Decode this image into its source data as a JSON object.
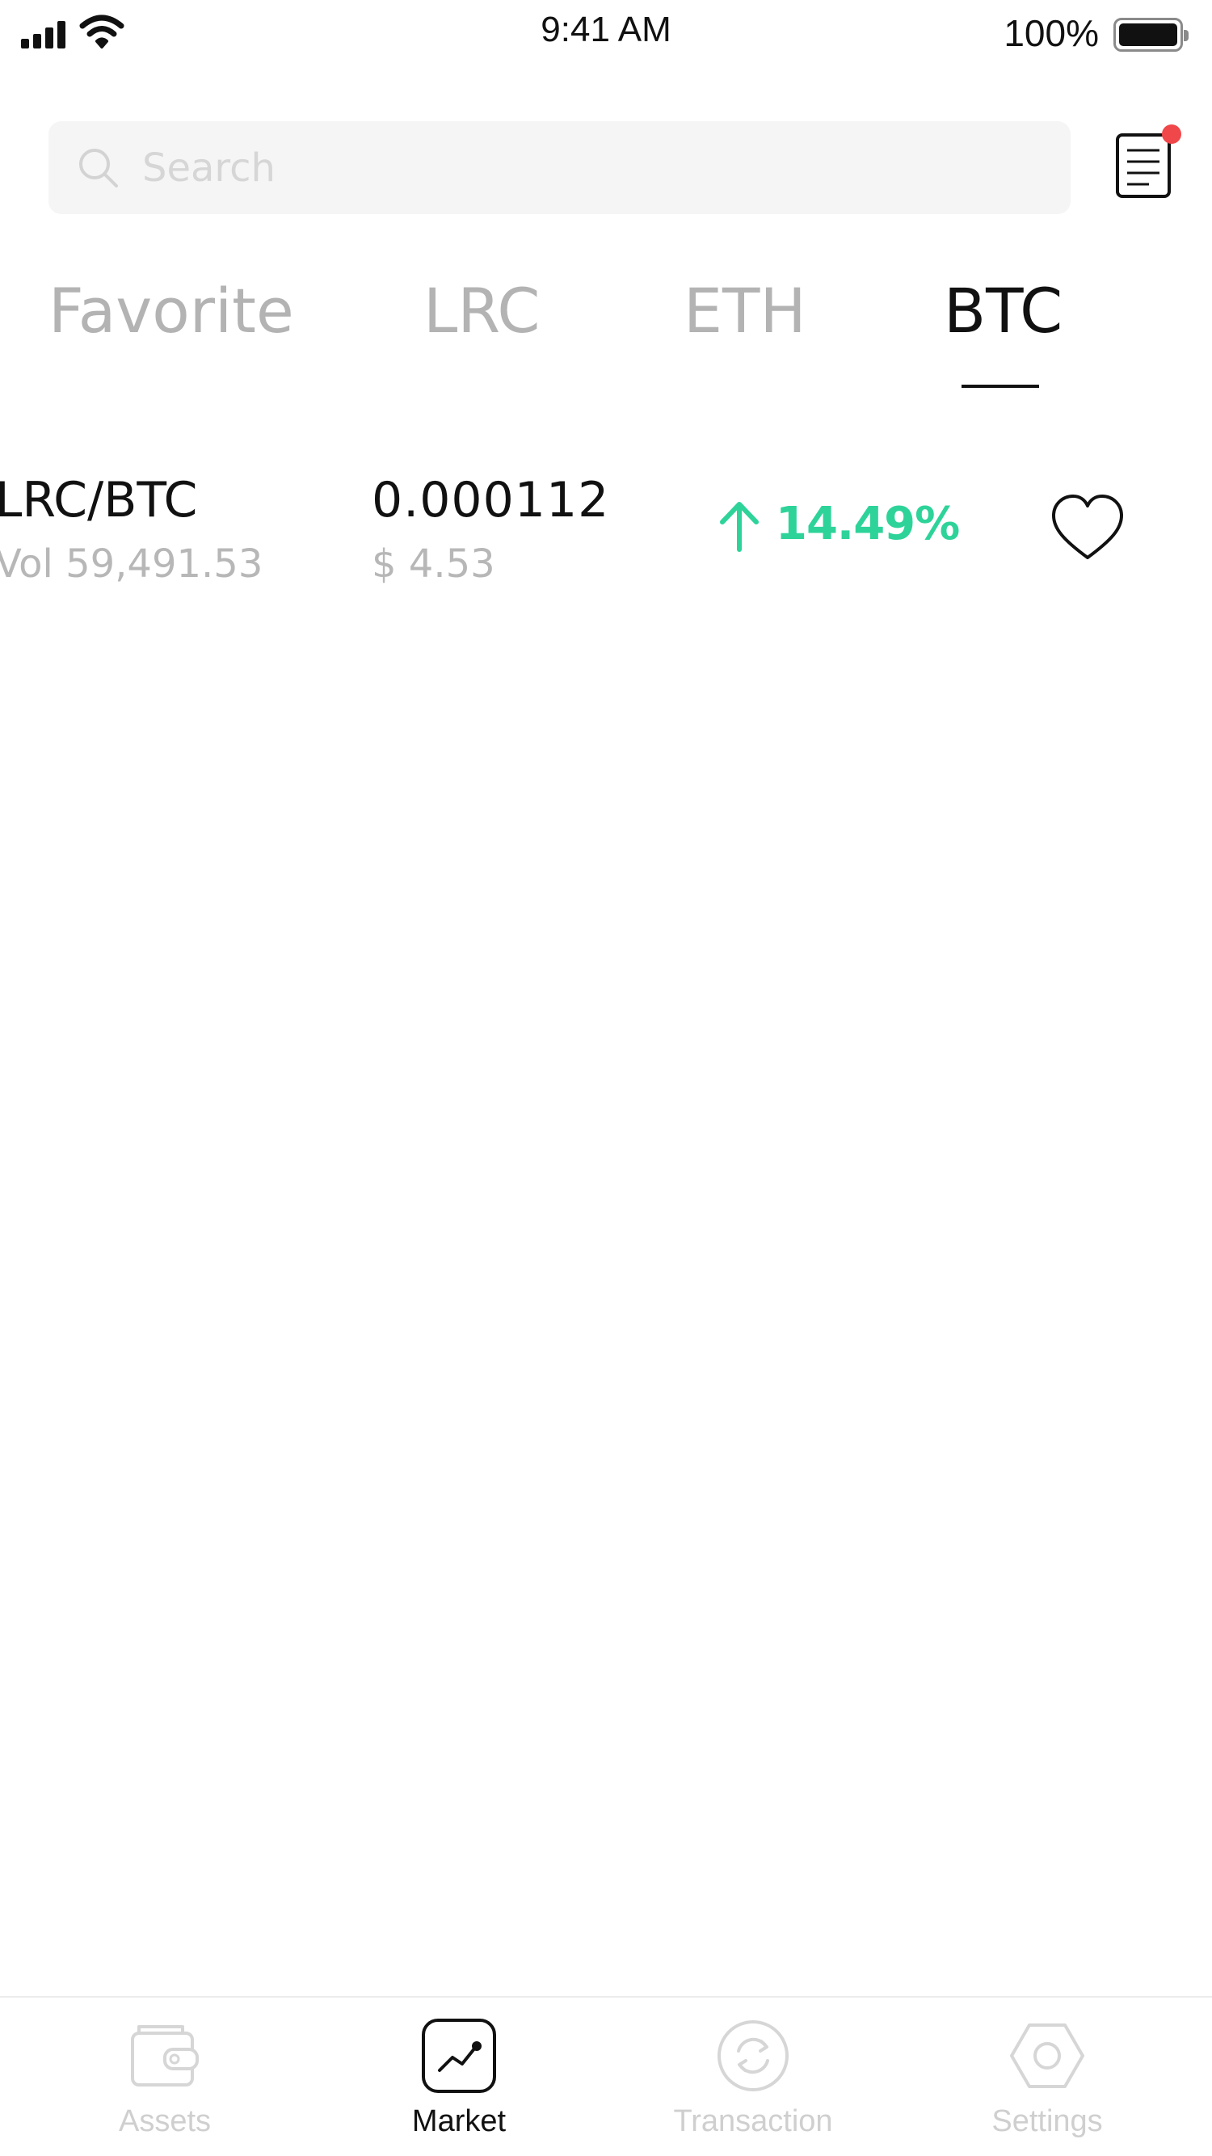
{
  "status_bar": {
    "time": "9:41 AM",
    "battery": "100%",
    "icons": [
      "signal-icon",
      "wifi-icon",
      "battery-icon"
    ]
  },
  "search": {
    "placeholder": "Search",
    "value": "",
    "icon": "search-icon"
  },
  "header": {
    "orders_icon": "document-list-icon",
    "has_notification": true,
    "notification_color": "#f0474a"
  },
  "tabs": [
    {
      "label": "Favorite",
      "active": false
    },
    {
      "label": "LRC",
      "active": false
    },
    {
      "label": "ETH",
      "active": false
    },
    {
      "label": "BTC",
      "active": true
    }
  ],
  "markets": [
    {
      "pair": "LRC/BTC",
      "volume": "Vol 59,491.53",
      "price": "0.000112",
      "price_usd": "$ 4.53",
      "change": "14.49%",
      "change_direction": "up",
      "favorited": false
    }
  ],
  "bottom_nav": [
    {
      "label": "Assets",
      "icon": "wallet-icon",
      "active": false
    },
    {
      "label": "Market",
      "icon": "chart-icon",
      "active": true
    },
    {
      "label": "Transaction",
      "icon": "exchange-icon",
      "active": false
    },
    {
      "label": "Settings",
      "icon": "hexagon-gear-icon",
      "active": false
    }
  ],
  "colors": {
    "accent_up": "#2ed39a",
    "text_primary": "#111111",
    "text_secondary": "#b7b7b7",
    "inactive": "#cfcfcf",
    "search_bg": "#f5f5f5"
  }
}
